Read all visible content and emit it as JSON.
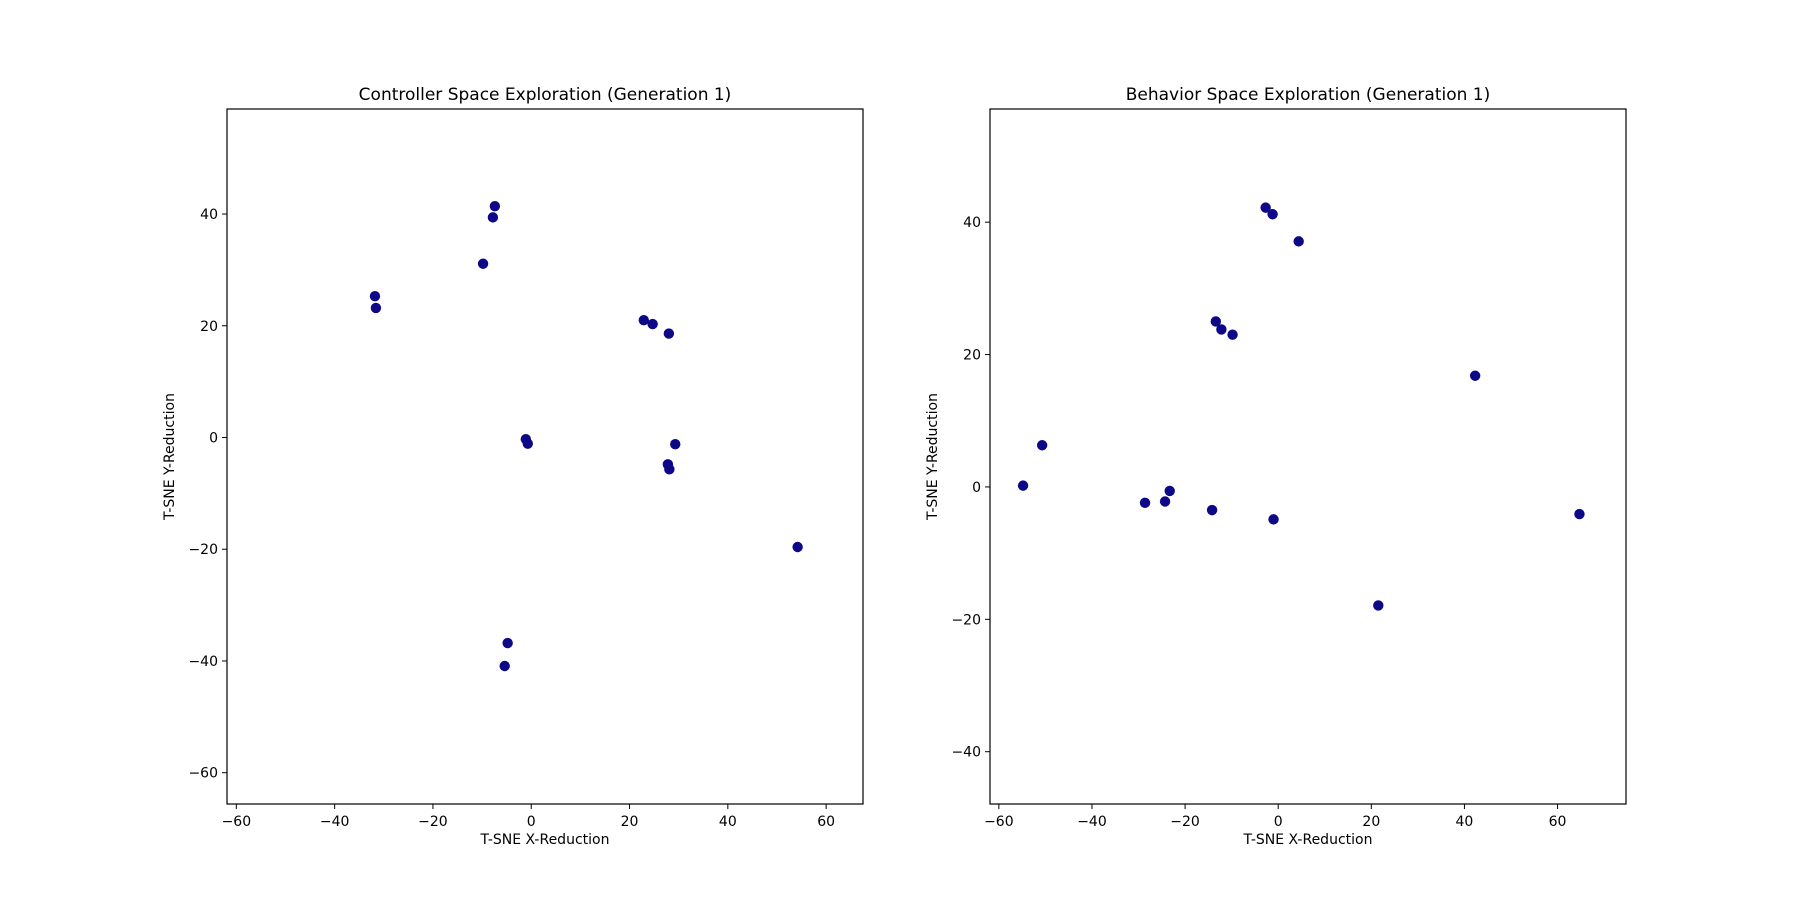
{
  "figure": {
    "background": "#ffffff"
  },
  "chart_data": [
    {
      "type": "scatter",
      "title": "Controller Space Exploration (Generation 1)",
      "xlabel": "T-SNE X-Reduction",
      "ylabel": "T-SNE Y-Reduction",
      "xlim": [
        -61.9,
        67.5
      ],
      "ylim": [
        -65.6,
        58.8
      ],
      "xticks": [
        -60,
        -40,
        -20,
        0,
        20,
        40,
        60
      ],
      "yticks": [
        -60,
        -40,
        -20,
        0,
        20,
        40
      ],
      "xtick_labels": [
        "−60",
        "−40",
        "−20",
        "0",
        "20",
        "40",
        "60"
      ],
      "ytick_labels": [
        "−60",
        "−40",
        "−20",
        "0",
        "20",
        "40"
      ],
      "grid": false,
      "marker_color": "#0d0887",
      "series": [
        {
          "points": [
            [
              -7.4,
              41.4
            ],
            [
              -7.8,
              39.4
            ],
            [
              -9.8,
              31.1
            ],
            [
              -31.8,
              25.3
            ],
            [
              -31.6,
              23.2
            ],
            [
              22.9,
              21.0
            ],
            [
              24.7,
              20.3
            ],
            [
              28.0,
              18.6
            ],
            [
              -1.1,
              -0.3
            ],
            [
              -0.7,
              -1.1
            ],
            [
              29.3,
              -1.2
            ],
            [
              27.8,
              -4.8
            ],
            [
              28.1,
              -5.7
            ],
            [
              54.2,
              -19.6
            ],
            [
              -4.8,
              -36.8
            ],
            [
              -5.4,
              -40.9
            ]
          ]
        }
      ]
    },
    {
      "type": "scatter",
      "title": "Behavior Space Exploration (Generation 1)",
      "xlabel": "T-SNE X-Reduction",
      "ylabel": "T-SNE Y-Reduction",
      "xlim": [
        -61.9,
        74.7
      ],
      "ylim": [
        -47.9,
        57.1
      ],
      "xticks": [
        -60,
        -40,
        -20,
        0,
        20,
        40,
        60
      ],
      "yticks": [
        -40,
        -20,
        0,
        20,
        40
      ],
      "xtick_labels": [
        "−60",
        "−40",
        "−20",
        "0",
        "20",
        "40",
        "60"
      ],
      "ytick_labels": [
        "−40",
        "−20",
        "0",
        "20",
        "40"
      ],
      "grid": false,
      "marker_color": "#0d0887",
      "series": [
        {
          "points": [
            [
              -2.7,
              42.2
            ],
            [
              -1.2,
              41.2
            ],
            [
              4.4,
              37.1
            ],
            [
              -13.4,
              25.0
            ],
            [
              -12.2,
              23.8
            ],
            [
              -9.8,
              23.0
            ],
            [
              42.3,
              16.8
            ],
            [
              -50.7,
              6.3
            ],
            [
              -54.8,
              0.2
            ],
            [
              -28.6,
              -2.4
            ],
            [
              -24.3,
              -2.2
            ],
            [
              -23.3,
              -0.6
            ],
            [
              -14.2,
              -3.5
            ],
            [
              -1.0,
              -4.9
            ],
            [
              64.7,
              -4.1
            ],
            [
              21.5,
              -17.9
            ]
          ]
        }
      ]
    }
  ]
}
